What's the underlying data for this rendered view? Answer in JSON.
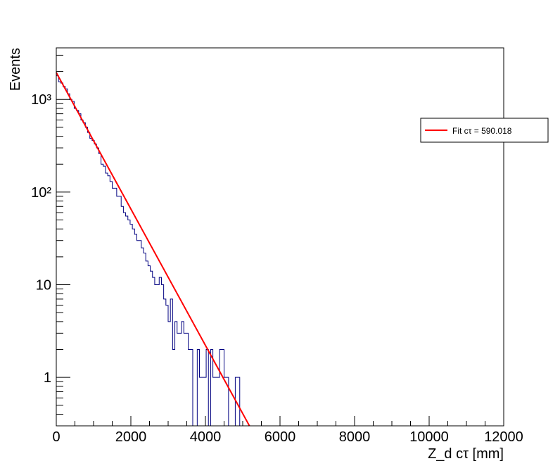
{
  "chart_data": {
    "type": "histogram",
    "title": "",
    "xlabel": "Z_d cτ [mm]",
    "ylabel": "Events",
    "xlim": [
      0,
      12000
    ],
    "ylim": [
      0.3,
      3600
    ],
    "yscale": "log",
    "grid": false,
    "legend_position": "top-right",
    "x_tick_labels": [
      "0",
      "2000",
      "4000",
      "6000",
      "8000",
      "10000",
      "12000"
    ],
    "y_tick_labels": [
      "1",
      "10",
      "10²",
      "10³"
    ],
    "histogram": {
      "color": "#000080",
      "bin_width": 60,
      "counts": [
        1800,
        1550,
        1500,
        1380,
        1300,
        1150,
        1000,
        950,
        800,
        760,
        700,
        600,
        560,
        500,
        440,
        380,
        360,
        330,
        300,
        260,
        200,
        190,
        160,
        150,
        130,
        110,
        110,
        90,
        90,
        70,
        60,
        55,
        50,
        45,
        40,
        35,
        30,
        30,
        25,
        22,
        18,
        16,
        14,
        12,
        10,
        10,
        12,
        10,
        7,
        6,
        4,
        7,
        2,
        4,
        3,
        3,
        4,
        3,
        3,
        2,
        2,
        0,
        0,
        2,
        1,
        1,
        1,
        2,
        0,
        2,
        1,
        1,
        1,
        2,
        2,
        1,
        1,
        0,
        0,
        0,
        1,
        1,
        0,
        0,
        0,
        0,
        0,
        0,
        0,
        0,
        0,
        0,
        0,
        0,
        0,
        0,
        0,
        0,
        0,
        0,
        0,
        0,
        0,
        0,
        0,
        0,
        0,
        0,
        0,
        0,
        0,
        0,
        0,
        0,
        0,
        0,
        0,
        0,
        0,
        0,
        0,
        0,
        0,
        0,
        0,
        0,
        0,
        0,
        0,
        0,
        0,
        0,
        0,
        0,
        0,
        0,
        0,
        0,
        0,
        0,
        0,
        0,
        0,
        0,
        0,
        0,
        0,
        0,
        0,
        0,
        0,
        0,
        0,
        0,
        0,
        0,
        0,
        0,
        0,
        0,
        0,
        0,
        0,
        0,
        0,
        0,
        0,
        0,
        0,
        0,
        0,
        0,
        0,
        0,
        0,
        0,
        0,
        0,
        0,
        0,
        0,
        0,
        0,
        0,
        0,
        0,
        0,
        0,
        0,
        0,
        0,
        0,
        0,
        0,
        0,
        0,
        0
      ]
    },
    "fit": {
      "name": "Fit cτ = 590.018",
      "color": "#ff0000",
      "function": "exponential",
      "amplitude": 1950,
      "ctau": 590.018,
      "x_range": [
        0,
        5200
      ]
    }
  }
}
